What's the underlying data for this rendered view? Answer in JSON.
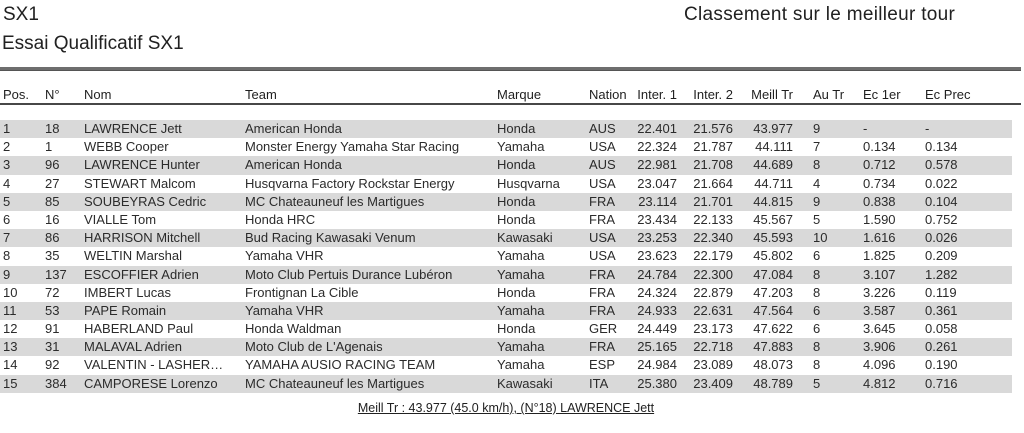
{
  "page": {
    "category_title": "SX1",
    "ranking_note": "Classement sur le meilleur tour",
    "session_title": "Essai Qualificatif SX1",
    "footer": "Meill Tr : 43.977 (45.0 km/h), (N°18) LAWRENCE Jett"
  },
  "colors": {
    "row_band": "#d9d9d9",
    "rule_thick": "#6e6e6e",
    "rule_thin": "#474747",
    "text": "#212121"
  },
  "table": {
    "columns": [
      {
        "key": "pos",
        "label": "Pos."
      },
      {
        "key": "num",
        "label": "N°"
      },
      {
        "key": "nom",
        "label": "Nom"
      },
      {
        "key": "team",
        "label": "Team"
      },
      {
        "key": "marque",
        "label": "Marque"
      },
      {
        "key": "nation",
        "label": "Nation"
      },
      {
        "key": "inter1",
        "label": "Inter. 1"
      },
      {
        "key": "inter2",
        "label": "Inter. 2"
      },
      {
        "key": "meill",
        "label": "Meill Tr"
      },
      {
        "key": "autr",
        "label": "Au Tr"
      },
      {
        "key": "ec1er",
        "label": "Ec 1er"
      },
      {
        "key": "ecprec",
        "label": "Ec Prec"
      }
    ],
    "rows": [
      {
        "pos": "1",
        "num": "18",
        "nom": "LAWRENCE Jett",
        "team": "American Honda",
        "marque": "Honda",
        "nation": "AUS",
        "inter1": "22.401",
        "inter2": "21.576",
        "meill": "43.977",
        "autr": "9",
        "ec1er": "-",
        "ecprec": "-"
      },
      {
        "pos": "2",
        "num": "1",
        "nom": "WEBB Cooper",
        "team": "Monster Energy Yamaha Star Racing",
        "marque": "Yamaha",
        "nation": "USA",
        "inter1": "22.324",
        "inter2": "21.787",
        "meill": "44.111",
        "autr": "7",
        "ec1er": "0.134",
        "ecprec": "0.134"
      },
      {
        "pos": "3",
        "num": "96",
        "nom": "LAWRENCE Hunter",
        "team": "American Honda",
        "marque": "Honda",
        "nation": "AUS",
        "inter1": "22.981",
        "inter2": "21.708",
        "meill": "44.689",
        "autr": "8",
        "ec1er": "0.712",
        "ecprec": "0.578"
      },
      {
        "pos": "4",
        "num": "27",
        "nom": "STEWART Malcom",
        "team": "Husqvarna Factory Rockstar Energy",
        "marque": "Husqvarna",
        "nation": "USA",
        "inter1": "23.047",
        "inter2": "21.664",
        "meill": "44.711",
        "autr": "4",
        "ec1er": "0.734",
        "ecprec": "0.022"
      },
      {
        "pos": "5",
        "num": "85",
        "nom": "SOUBEYRAS Cedric",
        "team": "MC Chateauneuf les Martigues",
        "marque": "Honda",
        "nation": "FRA",
        "inter1": "23.114",
        "inter2": "21.701",
        "meill": "44.815",
        "autr": "9",
        "ec1er": "0.838",
        "ecprec": "0.104"
      },
      {
        "pos": "6",
        "num": "16",
        "nom": "VIALLE Tom",
        "team": "Honda HRC",
        "marque": "Honda",
        "nation": "FRA",
        "inter1": "23.434",
        "inter2": "22.133",
        "meill": "45.567",
        "autr": "5",
        "ec1er": "1.590",
        "ecprec": "0.752"
      },
      {
        "pos": "7",
        "num": "86",
        "nom": "HARRISON Mitchell",
        "team": "Bud Racing Kawasaki Venum",
        "marque": "Kawasaki",
        "nation": "USA",
        "inter1": "23.253",
        "inter2": "22.340",
        "meill": "45.593",
        "autr": "10",
        "ec1er": "1.616",
        "ecprec": "0.026"
      },
      {
        "pos": "8",
        "num": "35",
        "nom": "WELTIN Marshal",
        "team": "Yamaha VHR",
        "marque": "Yamaha",
        "nation": "USA",
        "inter1": "23.623",
        "inter2": "22.179",
        "meill": "45.802",
        "autr": "6",
        "ec1er": "1.825",
        "ecprec": "0.209"
      },
      {
        "pos": "9",
        "num": "137",
        "nom": "ESCOFFIER Adrien",
        "team": "Moto Club Pertuis Durance Lubéron",
        "marque": "Yamaha",
        "nation": "FRA",
        "inter1": "24.784",
        "inter2": "22.300",
        "meill": "47.084",
        "autr": "8",
        "ec1er": "3.107",
        "ecprec": "1.282"
      },
      {
        "pos": "10",
        "num": "72",
        "nom": "IMBERT Lucas",
        "team": "Frontignan La Cible",
        "marque": "Honda",
        "nation": "FRA",
        "inter1": "24.324",
        "inter2": "22.879",
        "meill": "47.203",
        "autr": "8",
        "ec1er": "3.226",
        "ecprec": "0.119"
      },
      {
        "pos": "11",
        "num": "53",
        "nom": "PAPE Romain",
        "team": "Yamaha VHR",
        "marque": "Yamaha",
        "nation": "FRA",
        "inter1": "24.933",
        "inter2": "22.631",
        "meill": "47.564",
        "autr": "6",
        "ec1er": "3.587",
        "ecprec": "0.361"
      },
      {
        "pos": "12",
        "num": "91",
        "nom": "HABERLAND Paul",
        "team": "Honda Waldman",
        "marque": "Honda",
        "nation": "GER",
        "inter1": "24.449",
        "inter2": "23.173",
        "meill": "47.622",
        "autr": "6",
        "ec1er": "3.645",
        "ecprec": "0.058"
      },
      {
        "pos": "13",
        "num": "31",
        "nom": "MALAVAL Adrien",
        "team": "Moto Club de L'Agenais",
        "marque": "Yamaha",
        "nation": "FRA",
        "inter1": "25.165",
        "inter2": "22.718",
        "meill": "47.883",
        "autr": "8",
        "ec1er": "3.906",
        "ecprec": "0.261"
      },
      {
        "pos": "14",
        "num": "92",
        "nom": "VALENTIN - LASHER…",
        "team": "YAMAHA AUSIO RACING TEAM",
        "marque": "Yamaha",
        "nation": "ESP",
        "inter1": "24.984",
        "inter2": "23.089",
        "meill": "48.073",
        "autr": "8",
        "ec1er": "4.096",
        "ecprec": "0.190"
      },
      {
        "pos": "15",
        "num": "384",
        "nom": "CAMPORESE Lorenzo",
        "team": "MC Chateauneuf les Martigues",
        "marque": "Kawasaki",
        "nation": "ITA",
        "inter1": "25.380",
        "inter2": "23.409",
        "meill": "48.789",
        "autr": "5",
        "ec1er": "4.812",
        "ecprec": "0.716"
      }
    ]
  }
}
